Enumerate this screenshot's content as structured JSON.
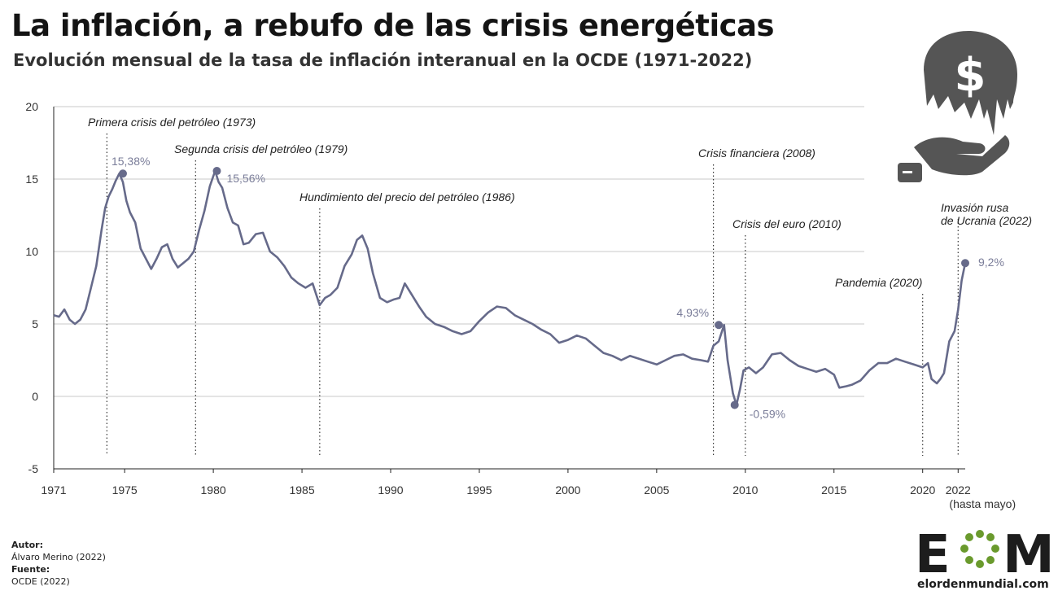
{
  "title": "La inflación, a rebufo de las crisis energéticas",
  "subtitle": "Evolución mensual de la tasa de inflación interanual en la OCDE (1971-2022)",
  "footer": {
    "author_label": "Autor:",
    "author": "Álvaro Merino (2022)",
    "source_label": "Fuente:",
    "source": "OCDE (2022)"
  },
  "brand": {
    "logo_text": "EOM",
    "url": "elordenmundial.com"
  },
  "icon": "money-crisis-icon",
  "colors": {
    "line": "#666a8a",
    "grid": "#c8c8c8",
    "axis": "#222222",
    "point_label": "#7a7d99"
  },
  "chart_data": {
    "type": "line",
    "title": "La inflación, a rebufo de las crisis energéticas",
    "subtitle": "Evolución mensual de la tasa de inflación interanual en la OCDE (1971-2022)",
    "xlabel": "",
    "ylabel": "",
    "xlim": [
      1971,
      2022.4
    ],
    "ylim": [
      -5,
      20
    ],
    "grid": "horizontal",
    "y_ticks": [
      -5,
      0,
      5,
      10,
      15,
      20
    ],
    "x_ticks": [
      {
        "value": 1971,
        "label": "1971"
      },
      {
        "value": 1975,
        "label": "1975"
      },
      {
        "value": 1980,
        "label": "1980"
      },
      {
        "value": 1985,
        "label": "1985"
      },
      {
        "value": 1990,
        "label": "1990"
      },
      {
        "value": 1995,
        "label": "1995"
      },
      {
        "value": 2000,
        "label": "2000"
      },
      {
        "value": 2005,
        "label": "2005"
      },
      {
        "value": 2010,
        "label": "2010"
      },
      {
        "value": 2015,
        "label": "2015"
      },
      {
        "value": 2020,
        "label": "2020"
      },
      {
        "value": 2022,
        "label": "2022"
      }
    ],
    "x_tick_note": "(hasta mayo)",
    "series": [
      {
        "x": [
          1971.0,
          1971.3,
          1971.6,
          1971.9,
          1972.2,
          1972.5,
          1972.8,
          1973.1,
          1973.4,
          1973.7,
          1973.9,
          1974.1,
          1974.3,
          1974.5,
          1974.7,
          1974.9,
          1975.1,
          1975.3,
          1975.6,
          1975.9,
          1976.2,
          1976.5,
          1976.8,
          1977.1,
          1977.4,
          1977.7,
          1978.0,
          1978.3,
          1978.6,
          1978.9,
          1979.2,
          1979.5,
          1979.8,
          1980.1,
          1980.3,
          1980.5,
          1980.8,
          1981.1,
          1981.4,
          1981.7,
          1982.0,
          1982.4,
          1982.8,
          1983.2,
          1983.6,
          1984.0,
          1984.4,
          1984.8,
          1985.2,
          1985.6,
          1986.0,
          1986.3,
          1986.6,
          1987.0,
          1987.4,
          1987.8,
          1988.1,
          1988.4,
          1988.7,
          1989.0,
          1989.4,
          1989.8,
          1990.2,
          1990.5,
          1990.8,
          1991.2,
          1991.6,
          1992.0,
          1992.5,
          1993.0,
          1993.5,
          1994.0,
          1994.5,
          1995.0,
          1995.5,
          1996.0,
          1996.5,
          1997.0,
          1997.5,
          1998.0,
          1998.5,
          1999.0,
          1999.5,
          2000.0,
          2000.5,
          2001.0,
          2001.5,
          2002.0,
          2002.5,
          2003.0,
          2003.5,
          2004.0,
          2004.5,
          2005.0,
          2005.5,
          2006.0,
          2006.5,
          2007.0,
          2007.5,
          2007.9,
          2008.2,
          2008.5,
          2008.8,
          2009.0,
          2009.3,
          2009.5,
          2009.7,
          2009.9,
          2010.2,
          2010.6,
          2011.0,
          2011.5,
          2012.0,
          2012.5,
          2013.0,
          2013.5,
          2014.0,
          2014.5,
          2015.0,
          2015.3,
          2015.7,
          2016.0,
          2016.5,
          2017.0,
          2017.5,
          2018.0,
          2018.5,
          2019.0,
          2019.5,
          2020.0,
          2020.3,
          2020.5,
          2020.8,
          2021.0,
          2021.2,
          2021.5,
          2021.8,
          2022.0,
          2022.2,
          2022.4
        ],
        "values": [
          5.6,
          5.5,
          6.0,
          5.3,
          5.0,
          5.3,
          6.0,
          7.5,
          9.0,
          11.5,
          13.0,
          13.8,
          14.3,
          14.9,
          15.38,
          14.8,
          13.5,
          12.7,
          12.0,
          10.2,
          9.5,
          8.8,
          9.5,
          10.3,
          10.5,
          9.5,
          8.9,
          9.2,
          9.5,
          10.0,
          11.5,
          12.8,
          14.5,
          15.56,
          14.8,
          14.4,
          13.0,
          12.0,
          11.8,
          10.5,
          10.6,
          11.2,
          11.3,
          10.0,
          9.6,
          9.0,
          8.2,
          7.8,
          7.5,
          7.8,
          6.3,
          6.8,
          7.0,
          7.5,
          9.0,
          9.8,
          10.8,
          11.1,
          10.2,
          8.5,
          6.8,
          6.5,
          6.7,
          6.8,
          7.8,
          7.0,
          6.2,
          5.5,
          5.0,
          4.8,
          4.5,
          4.3,
          4.5,
          5.2,
          5.8,
          6.2,
          6.1,
          5.6,
          5.3,
          5.0,
          4.6,
          4.3,
          3.7,
          3.9,
          4.2,
          4.0,
          3.5,
          3.0,
          2.8,
          2.5,
          2.8,
          2.6,
          2.4,
          2.2,
          2.5,
          2.8,
          2.9,
          2.6,
          2.5,
          2.4,
          3.5,
          3.8,
          4.93,
          2.5,
          0.2,
          -0.59,
          0.5,
          1.8,
          2.0,
          1.6,
          2.0,
          2.9,
          3.0,
          2.5,
          2.1,
          1.9,
          1.7,
          1.9,
          1.5,
          0.6,
          0.7,
          0.8,
          1.1,
          1.8,
          2.3,
          2.3,
          2.6,
          2.4,
          2.2,
          2.0,
          2.3,
          1.2,
          0.9,
          1.2,
          1.6,
          3.8,
          4.5,
          6.0,
          8.0,
          9.2
        ]
      }
    ],
    "point_labels": [
      {
        "x": 1974.9,
        "y": 15.38,
        "text": "15,38%"
      },
      {
        "x": 1980.2,
        "y": 15.56,
        "text": "15,56%"
      },
      {
        "x": 2008.5,
        "y": 4.93,
        "text": "4,93%"
      },
      {
        "x": 2009.4,
        "y": -0.59,
        "text": "-0,59%"
      },
      {
        "x": 2022.4,
        "y": 9.2,
        "text": "9,2%"
      }
    ],
    "annotations": [
      {
        "x": 1974.0,
        "text": "Primera crisis del petróleo (1973)"
      },
      {
        "x": 1979.0,
        "text": "Segunda crisis del petróleo (1979)"
      },
      {
        "x": 1986.0,
        "text": "Hundimiento del precio del petróleo (1986)"
      },
      {
        "x": 2008.2,
        "text": "Crisis financiera (2008)"
      },
      {
        "x": 2010.0,
        "text": "Crisis del euro (2010)"
      },
      {
        "x": 2020.0,
        "text": "Pandemia (2020)"
      },
      {
        "x": 2022.0,
        "text": "Invasión rusa de Ucrania (2022)"
      }
    ]
  }
}
